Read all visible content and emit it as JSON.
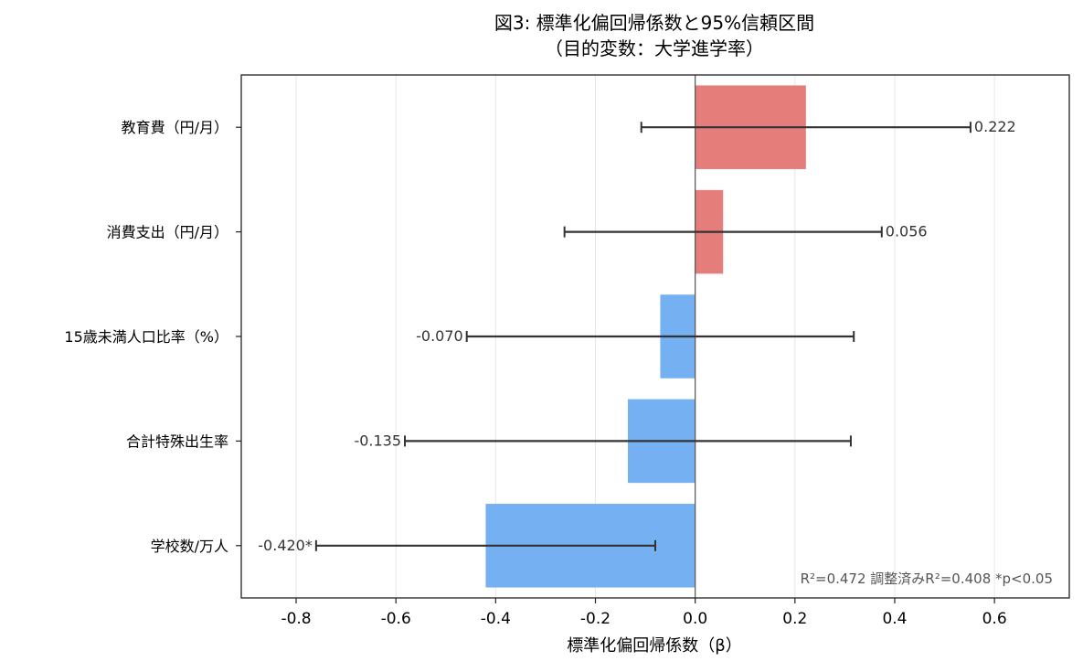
{
  "chart_data": {
    "type": "bar",
    "orientation": "horizontal",
    "title_line1": "図3: 標準化偏回帰係数と95%信頼区間",
    "title_line2": "（目的変数：大学進学率）",
    "xlabel": "標準化偏回帰係数（β）",
    "ylabel": "",
    "xlim": [
      -0.91,
      0.75
    ],
    "xticks": [
      -0.8,
      -0.6,
      -0.4,
      -0.2,
      0.0,
      0.2,
      0.4,
      0.6
    ],
    "xtick_labels": [
      "-0.8",
      "-0.6",
      "-0.4",
      "-0.2",
      "0.0",
      "0.2",
      "0.4",
      "0.6"
    ],
    "grid": "vertical",
    "categories": [
      "教育費（円/月）",
      "消費支出（円/月）",
      "15歳未満人口比率（%）",
      "合計特殊出生率",
      "学校数/万人"
    ],
    "values": [
      0.222,
      0.056,
      -0.07,
      -0.135,
      -0.42
    ],
    "ci_low": [
      -0.108,
      -0.262,
      -0.458,
      -0.582,
      -0.76
    ],
    "ci_high": [
      0.552,
      0.374,
      0.318,
      0.312,
      -0.08
    ],
    "value_labels": [
      "0.222",
      "0.056",
      "-0.070",
      "-0.135",
      "-0.420*"
    ],
    "colors": {
      "positive": "#E47A78",
      "negative": "#72AEF2",
      "errorbar": "#333333",
      "grid": "#e6e6e6"
    },
    "annotation": "R²=0.472  調整済みR²=0.408   *p<0.05"
  }
}
